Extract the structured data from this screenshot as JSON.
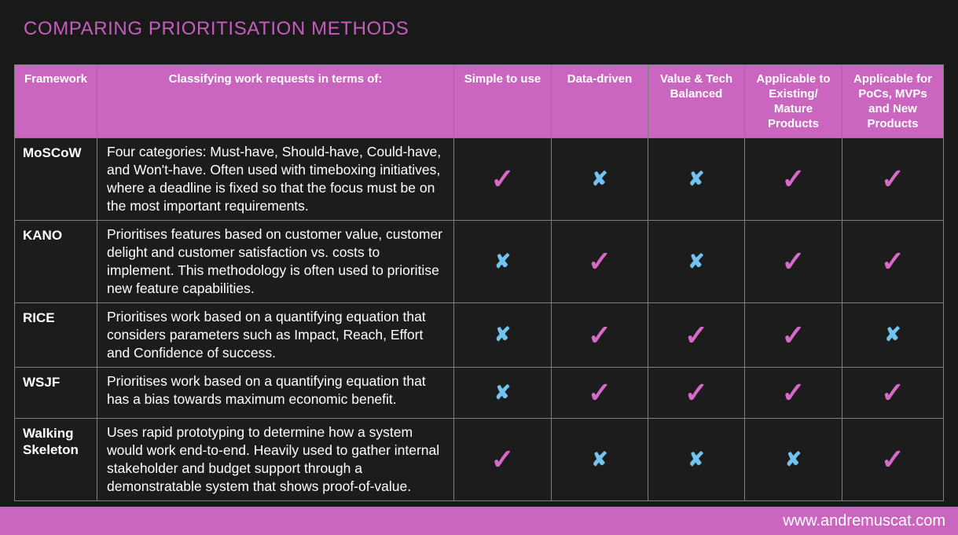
{
  "title": "COMPARING PRIORITISATION METHODS",
  "footer": {
    "url": "www.andremuscat.com"
  },
  "colors": {
    "background": "#191919",
    "accent_pink": "#ca66c0",
    "title_pink": "#c75cbd",
    "check_pink": "#d76ac8",
    "cross_blue": "#72c4f0",
    "grid_gray": "#7e7e7e",
    "text_white": "#ffffff"
  },
  "glyphs": {
    "check": "✓",
    "cross": "✘"
  },
  "table": {
    "headers": [
      "Framework",
      "Classifying work requests in terms of:",
      "Simple to use",
      "Data-driven",
      "Value & Tech Balanced",
      "Applicable to Existing/ Mature Products",
      "Applicable for PoCs, MVPs and New Products"
    ],
    "rows": [
      {
        "framework": "MoSCoW",
        "description": "Four categories: Must-have, Should-have, Could-have, and Won't-have. Often used with timeboxing initiatives, where a deadline is fixed so that the focus must be on the most important requirements.",
        "marks": [
          "check",
          "cross",
          "cross",
          "check",
          "check"
        ]
      },
      {
        "framework": "KANO",
        "description": "Prioritises features based on customer value, customer delight and customer satisfaction vs. costs to implement. This methodology is often used to prioritise new feature capabilities.",
        "marks": [
          "cross",
          "check",
          "cross",
          "check",
          "check"
        ]
      },
      {
        "framework": "RICE",
        "description": "Prioritises work based on a quantifying equation that considers parameters such as Impact, Reach, Effort and Confidence of success.",
        "marks": [
          "cross",
          "check",
          "check",
          "check",
          "cross"
        ]
      },
      {
        "framework": "WSJF",
        "description": "Prioritises work based on a quantifying equation that has a bias towards maximum economic benefit.",
        "marks": [
          "cross",
          "check",
          "check",
          "check",
          "check"
        ]
      },
      {
        "framework": "Walking Skeleton",
        "description": "Uses rapid prototyping to determine how a system would work end-to-end. Heavily used to gather internal stakeholder and budget support through a demonstratable system that shows proof-of-value.",
        "marks": [
          "check",
          "cross",
          "cross",
          "cross",
          "check"
        ]
      }
    ]
  }
}
